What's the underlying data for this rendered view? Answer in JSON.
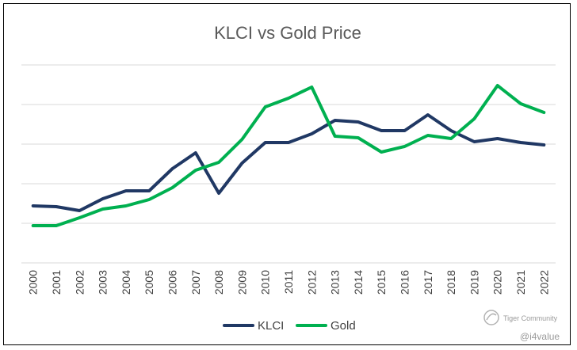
{
  "chart_data": {
    "type": "line",
    "title": "KLCI vs Gold Price",
    "xlabel": "",
    "ylabel": "",
    "x": [
      "2000",
      "2001",
      "2002",
      "2003",
      "2004",
      "2005",
      "2006",
      "2007",
      "2008",
      "2009",
      "2010",
      "2011",
      "2012",
      "2013",
      "2014",
      "2015",
      "2016",
      "2017",
      "2018",
      "2019",
      "2020",
      "2021",
      "2022"
    ],
    "ylim": [
      0,
      5
    ],
    "grid": true,
    "legend_position": "bottom",
    "series": [
      {
        "name": "KLCI",
        "color": "#203864",
        "values": [
          1.44,
          1.42,
          1.32,
          1.62,
          1.82,
          1.82,
          2.38,
          2.78,
          1.76,
          2.52,
          3.04,
          3.04,
          3.26,
          3.6,
          3.56,
          3.34,
          3.34,
          3.74,
          3.34,
          3.06,
          3.14,
          3.04,
          2.98
        ]
      },
      {
        "name": "Gold",
        "color": "#00b050",
        "values": [
          0.94,
          0.94,
          1.14,
          1.36,
          1.44,
          1.6,
          1.9,
          2.34,
          2.54,
          3.12,
          3.94,
          4.16,
          4.44,
          3.2,
          3.16,
          2.8,
          2.94,
          3.22,
          3.14,
          3.64,
          4.48,
          4.02,
          3.8
        ]
      }
    ]
  },
  "watermark": {
    "brand": "Tiger Community",
    "handle": "@i4value",
    "logo_icon": "tiger-community-logo-icon"
  }
}
